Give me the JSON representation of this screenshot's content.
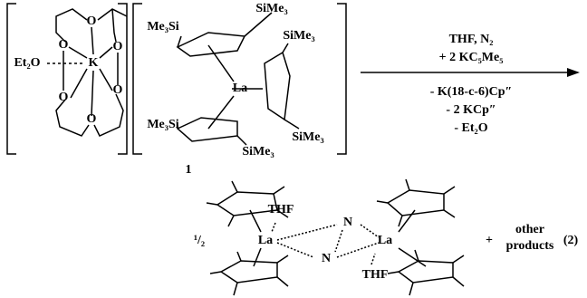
{
  "reactant": {
    "crown_complex": {
      "ligand": "Et₂O",
      "metal": "K",
      "oxygens": [
        "O",
        "O",
        "O",
        "O",
        "O",
        "O"
      ]
    },
    "lanthanum_complex": {
      "metal": "La",
      "silyl_groups": [
        "Me₃Si",
        "SiMe₃",
        "SiMe₃",
        "Me₃Si",
        "SiMe₃",
        "SiMe₃"
      ],
      "label": "1"
    }
  },
  "conditions": {
    "above": [
      "THF, N₂",
      "+ 2 KC₅Me₅"
    ],
    "below": [
      "- K(18-c-6)Cp″",
      "- 2 KCp″",
      "- Et₂O"
    ]
  },
  "product": {
    "coefficient": "¹/₂",
    "metals": [
      "La",
      "La"
    ],
    "ligands": [
      "THF",
      "THF"
    ],
    "nitrogens": [
      "N",
      "N"
    ],
    "plus": "+",
    "other": [
      "other",
      "products"
    ],
    "equation_number": "(2)"
  }
}
